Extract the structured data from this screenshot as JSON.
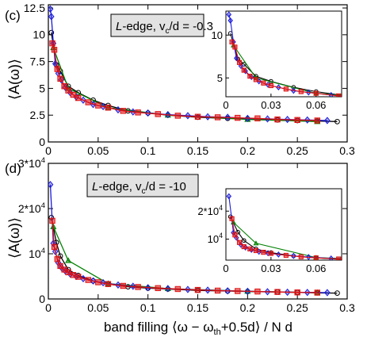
{
  "figure": {
    "ylabel": "⟨A(ω)⟩",
    "xlabel": "band filling ⟨ω − ω",
    "xlabel_sub": "th",
    "xlabel_tail": "+0.5d⟩ / N d"
  },
  "chart_data": [
    {
      "type": "line",
      "panel_label": "(c)",
      "legend_text": {
        "pre": "L",
        "mid": "-edge, v",
        "sub": "c",
        "post": "/d = -0.3"
      },
      "xlim": [
        0,
        0.3
      ],
      "ylim": [
        0,
        12.8
      ],
      "xticks": [
        0,
        0.05,
        0.1,
        0.15,
        0.2,
        0.25,
        0.3
      ],
      "xtick_labels": [
        "0",
        "0.05",
        "0.1",
        "0.15",
        "0.2",
        "0.25",
        "0.3"
      ],
      "yticks": [
        0,
        2.5,
        5,
        7.5,
        10,
        12.5
      ],
      "ytick_labels": [
        "0",
        "2.5",
        "5",
        "7.5",
        "10",
        "12.5"
      ],
      "grid": false,
      "series": [
        {
          "color": "#000000",
          "marker": "circle",
          "x": [
            0.003,
            0.008,
            0.012,
            0.02,
            0.03,
            0.045,
            0.06,
            0.08,
            0.1,
            0.12,
            0.15,
            0.18,
            0.2,
            0.23,
            0.25,
            0.27,
            0.29
          ],
          "y": [
            10.2,
            7.2,
            6.6,
            5.2,
            4.6,
            3.9,
            3.4,
            2.9,
            2.7,
            2.5,
            2.3,
            2.2,
            2.15,
            2.05,
            2.0,
            1.95,
            1.9
          ]
        },
        {
          "color": "#008000",
          "marker": "triangle",
          "x": [
            0.005,
            0.02,
            0.06,
            0.12,
            0.2,
            0.27
          ],
          "y": [
            8.8,
            5.0,
            3.2,
            2.5,
            2.1,
            1.9
          ]
        },
        {
          "color": "#1a1adb",
          "marker": "diamond",
          "x": [
            0.002,
            0.003,
            0.005,
            0.007,
            0.01,
            0.013,
            0.017,
            0.022,
            0.028,
            0.035,
            0.045,
            0.055,
            0.07,
            0.085,
            0.1,
            0.12,
            0.14,
            0.16,
            0.18,
            0.2,
            0.22,
            0.24,
            0.26,
            0.28
          ],
          "y": [
            12.4,
            11.7,
            9.2,
            7.3,
            6.4,
            5.8,
            5.1,
            4.6,
            4.2,
            3.9,
            3.5,
            3.3,
            3.0,
            2.8,
            2.7,
            2.55,
            2.45,
            2.35,
            2.3,
            2.2,
            2.15,
            2.1,
            2.05,
            2.0
          ]
        },
        {
          "color": "#e01010",
          "marker": "square",
          "x": [
            0.004,
            0.006,
            0.009,
            0.012,
            0.016,
            0.02,
            0.025,
            0.03,
            0.04,
            0.05,
            0.06,
            0.075,
            0.09,
            0.11,
            0.13,
            0.15,
            0.17,
            0.19,
            0.21,
            0.23,
            0.25,
            0.27
          ],
          "y": [
            9.2,
            8.6,
            6.8,
            5.9,
            5.2,
            4.8,
            4.4,
            4.1,
            3.7,
            3.4,
            3.2,
            2.9,
            2.75,
            2.6,
            2.45,
            2.35,
            2.3,
            2.25,
            2.2,
            2.1,
            2.05,
            2.0
          ]
        }
      ],
      "inset": {
        "xlim": [
          0,
          0.077
        ],
        "ylim": [
          2.8,
          12.8
        ],
        "xticks": [
          0,
          0.03,
          0.06
        ],
        "xtick_labels": [
          "0",
          "0.03",
          "0.06"
        ],
        "yticks": [
          5,
          10
        ],
        "ytick_labels": [
          "5",
          "10"
        ]
      }
    },
    {
      "type": "line",
      "panel_label": "(d)",
      "legend_text": {
        "pre": "L",
        "mid": "-edge, v",
        "sub": "c",
        "post": "/d = -10"
      },
      "xlim": [
        0,
        0.3
      ],
      "ylim": [
        0,
        30000
      ],
      "xticks": [
        0,
        0.05,
        0.1,
        0.15,
        0.2,
        0.25,
        0.3
      ],
      "xtick_labels": [
        "0",
        "0.05",
        "0.1",
        "0.15",
        "0.2",
        "0.25",
        "0.3"
      ],
      "yticks": [
        0,
        10000,
        20000,
        30000
      ],
      "ytick_labels": [
        {
          "base": "0",
          "exp": ""
        },
        {
          "base": "10",
          "exp": "4"
        },
        {
          "base": "2*10",
          "exp": "4"
        },
        {
          "base": "3*10",
          "exp": "4"
        }
      ],
      "grid": false,
      "series": [
        {
          "color": "#000000",
          "marker": "circle",
          "x": [
            0.003,
            0.008,
            0.012,
            0.02,
            0.03,
            0.045,
            0.06,
            0.08,
            0.1,
            0.12,
            0.15,
            0.18,
            0.2,
            0.23,
            0.25,
            0.27,
            0.29
          ],
          "y": [
            18000,
            12500,
            9500,
            6500,
            5200,
            4000,
            3300,
            2700,
            2400,
            2200,
            1900,
            1750,
            1650,
            1550,
            1450,
            1350,
            1300
          ]
        },
        {
          "color": "#008000",
          "marker": "triangle",
          "x": [
            0.005,
            0.02,
            0.06,
            0.12,
            0.2,
            0.27
          ],
          "y": [
            16000,
            8500,
            3400,
            2300,
            1700,
            1400
          ]
        },
        {
          "color": "#1a1adb",
          "marker": "diamond",
          "x": [
            0.002,
            0.005,
            0.007,
            0.01,
            0.013,
            0.017,
            0.022,
            0.028,
            0.035,
            0.045,
            0.055,
            0.07,
            0.085,
            0.1,
            0.12,
            0.14,
            0.16,
            0.18,
            0.2,
            0.22,
            0.24,
            0.26,
            0.28
          ],
          "y": [
            25300,
            12300,
            10500,
            8000,
            7000,
            6200,
            5500,
            5000,
            4500,
            4000,
            3600,
            3100,
            2800,
            2500,
            2300,
            2100,
            1950,
            1800,
            1700,
            1600,
            1500,
            1450,
            1400
          ]
        },
        {
          "color": "#e01010",
          "marker": "square",
          "x": [
            0.004,
            0.006,
            0.009,
            0.012,
            0.016,
            0.02,
            0.025,
            0.03,
            0.04,
            0.05,
            0.06,
            0.075,
            0.09,
            0.11,
            0.13,
            0.15,
            0.17,
            0.19,
            0.21,
            0.23,
            0.25,
            0.27
          ],
          "y": [
            17300,
            11500,
            8800,
            7300,
            6500,
            5900,
            5300,
            4900,
            4200,
            3700,
            3300,
            2900,
            2650,
            2400,
            2200,
            2000,
            1850,
            1750,
            1650,
            1550,
            1450,
            1400
          ]
        }
      ],
      "inset": {
        "xlim": [
          0,
          0.077
        ],
        "ylim": [
          2500,
          28000
        ],
        "xticks": [
          0,
          0.03,
          0.06
        ],
        "xtick_labels": [
          "0",
          "0.03",
          "0.06"
        ],
        "yticks": [
          10000,
          20000
        ],
        "ytick_labels": [
          {
            "base": "10",
            "exp": "4"
          },
          {
            "base": "2*10",
            "exp": "4"
          }
        ]
      }
    }
  ]
}
